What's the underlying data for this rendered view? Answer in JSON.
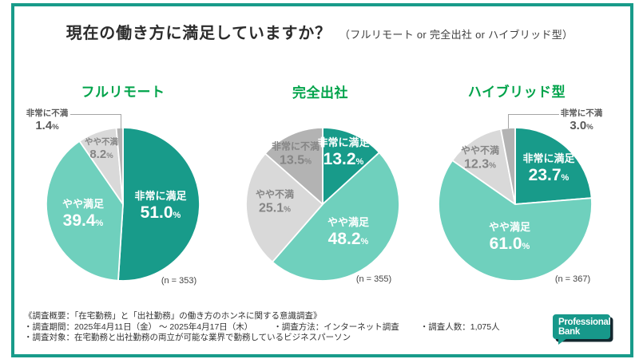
{
  "header": {
    "title": "現在の働き方に満足していますか？",
    "subtitle": "（フルリモート or 完全出社 or ハイブリッド型）"
  },
  "misc": {
    "percent": "%"
  },
  "colors": {
    "very_satisfied": "#189b8a",
    "somewhat_satisfied": "#6fd0bd",
    "somewhat_dissatisfied": "#d9d9d9",
    "very_dissatisfied": "#b3b3b3",
    "pie_title_green": "#00a34a",
    "card_border_teal": "#189b8a"
  },
  "chart_data": [
    {
      "type": "pie",
      "title": "フルリモート",
      "n_label": "(n = 353)",
      "start_angle": -90,
      "direction": "clockwise",
      "labels": "on-slice",
      "slices": [
        {
          "key": "very-satisfied",
          "label": "非常に満足",
          "value": 51.0,
          "value_text": "51.0",
          "color": "#189b8a"
        },
        {
          "key": "somewhat-satisfied",
          "label": "やや満足",
          "value": 39.4,
          "value_text": "39.4",
          "color": "#6fd0bd"
        },
        {
          "key": "somewhat-dissatisfied",
          "label": "やや不満",
          "value": 8.2,
          "value_text": "8.2",
          "color": "#d9d9d9"
        },
        {
          "key": "very-dissatisfied",
          "label": "非常に不満",
          "value": 1.4,
          "value_text": "1.4",
          "color": "#b3b3b3"
        }
      ]
    },
    {
      "type": "pie",
      "title": "完全出社",
      "n_label": "(n = 355)",
      "start_angle": -90,
      "direction": "clockwise",
      "labels": "on-slice",
      "slices": [
        {
          "key": "very-satisfied",
          "label": "非常に満足",
          "value": 13.2,
          "value_text": "13.2",
          "color": "#189b8a"
        },
        {
          "key": "somewhat-satisfied",
          "label": "やや満足",
          "value": 48.2,
          "value_text": "48.2",
          "color": "#6fd0bd"
        },
        {
          "key": "somewhat-dissatisfied",
          "label": "やや不満",
          "value": 25.1,
          "value_text": "25.1",
          "color": "#d9d9d9"
        },
        {
          "key": "very-dissatisfied",
          "label": "非常に不満",
          "value": 13.5,
          "value_text": "13.5",
          "color": "#b3b3b3"
        }
      ]
    },
    {
      "type": "pie",
      "title": "ハイブリッド型",
      "n_label": "(n = 367)",
      "start_angle": -90,
      "direction": "clockwise",
      "labels": "on-slice",
      "slices": [
        {
          "key": "very-satisfied",
          "label": "非常に満足",
          "value": 23.7,
          "value_text": "23.7",
          "color": "#189b8a"
        },
        {
          "key": "somewhat-satisfied",
          "label": "やや満足",
          "value": 61.0,
          "value_text": "61.0",
          "color": "#6fd0bd"
        },
        {
          "key": "somewhat-dissatisfied",
          "label": "やや不満",
          "value": 12.3,
          "value_text": "12.3",
          "color": "#d9d9d9"
        },
        {
          "key": "very-dissatisfied",
          "label": "非常に不満",
          "value": 3.0,
          "value_text": "3.0",
          "color": "#b3b3b3"
        }
      ]
    }
  ],
  "footer": {
    "line1": "《調査概要：「在宅勤務」と「出社勤務」の働き方のホンネに関する意識調査》",
    "items": [
      "・調査期間：2025年4月11日（金） ～ 2025年4月17日（木）",
      "・調査方法：インターネット調査",
      "・調査人数：1,075人"
    ],
    "line3": "・調査対象：在宅勤務と出社勤務の両立が可能な業界で勤務しているビジネスパーソン"
  },
  "logo": {
    "line1": "Professional",
    "line2": "Bank"
  }
}
